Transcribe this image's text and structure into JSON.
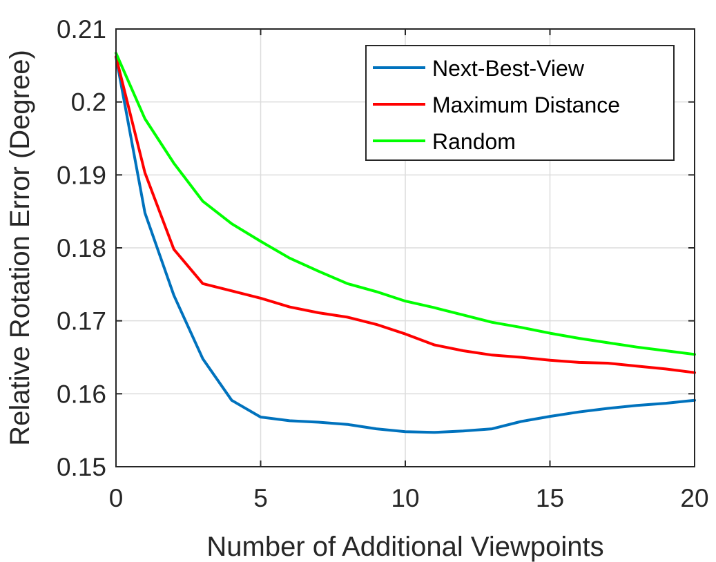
{
  "chart_data": {
    "type": "line",
    "title": "",
    "xlabel": "Number of Additional Viewpoints",
    "ylabel": "Relative Rotation Error (Degree)",
    "xlim": [
      0,
      20
    ],
    "ylim": [
      0.15,
      0.21
    ],
    "xticks": [
      0,
      5,
      10,
      15,
      20
    ],
    "xtick_labels": [
      "0",
      "5",
      "10",
      "15",
      "20"
    ],
    "yticks": [
      0.15,
      0.16,
      0.17,
      0.18,
      0.19,
      0.2,
      0.21
    ],
    "ytick_labels": [
      "0.15",
      "0.16",
      "0.17",
      "0.18",
      "0.19",
      "0.2",
      "0.21"
    ],
    "grid": true,
    "legend_position": "top-right",
    "x": [
      0,
      1,
      2,
      3,
      4,
      5,
      6,
      7,
      8,
      9,
      10,
      11,
      12,
      13,
      14,
      15,
      16,
      17,
      18,
      19,
      20
    ],
    "series": [
      {
        "name": "Next-Best-View",
        "color": "#0072BD",
        "values": [
          0.2062,
          0.1848,
          0.1735,
          0.1648,
          0.1591,
          0.1568,
          0.1563,
          0.1561,
          0.1558,
          0.1552,
          0.1548,
          0.1547,
          0.1549,
          0.1552,
          0.1562,
          0.1569,
          0.1575,
          0.158,
          0.1584,
          0.1587,
          0.1591
        ]
      },
      {
        "name": "Maximum Distance",
        "color": "#FF0000",
        "values": [
          0.2062,
          0.1903,
          0.1798,
          0.1751,
          0.1741,
          0.1731,
          0.1719,
          0.1711,
          0.1705,
          0.1695,
          0.1682,
          0.1667,
          0.1659,
          0.1653,
          0.165,
          0.1646,
          0.1643,
          0.1642,
          0.1638,
          0.1634,
          0.1629
        ]
      },
      {
        "name": "Random",
        "color": "#00FF00",
        "values": [
          0.2067,
          0.1977,
          0.1916,
          0.1864,
          0.1833,
          0.1809,
          0.1786,
          0.1768,
          0.1751,
          0.174,
          0.1727,
          0.1718,
          0.1708,
          0.1698,
          0.1691,
          0.1683,
          0.1676,
          0.167,
          0.1664,
          0.1659,
          0.1654
        ]
      }
    ]
  }
}
